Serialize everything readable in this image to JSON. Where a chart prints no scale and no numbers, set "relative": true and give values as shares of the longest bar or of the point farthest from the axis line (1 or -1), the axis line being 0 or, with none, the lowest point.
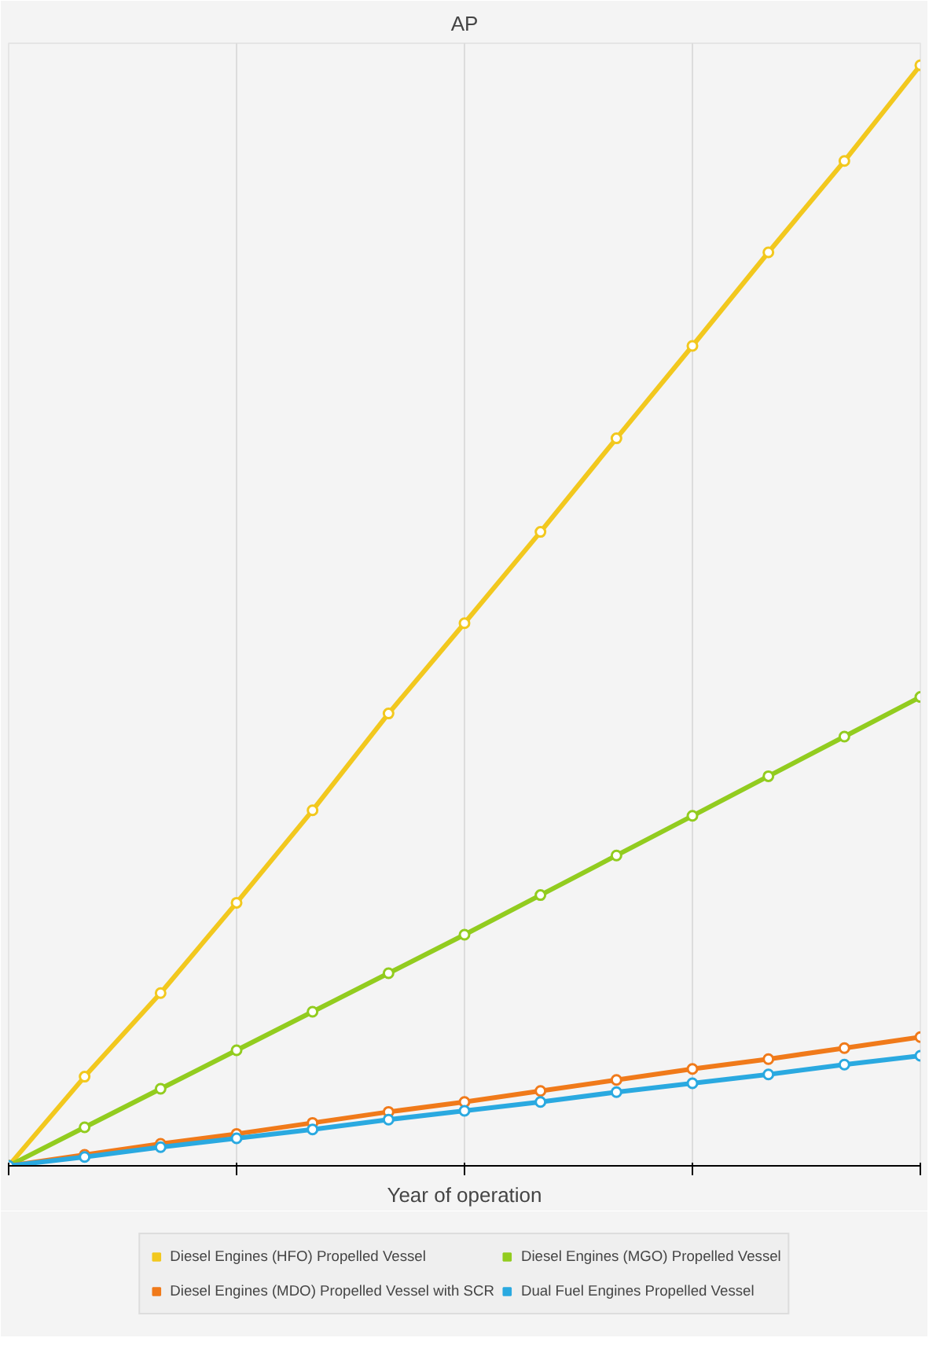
{
  "chart_data": {
    "type": "line",
    "title": "AP",
    "xlabel": "Year of operation",
    "relative": true,
    "categories": [
      null,
      null,
      null,
      null,
      null,
      null,
      null,
      null,
      null,
      null,
      null,
      null,
      null
    ],
    "series": [
      {
        "name": "Diesel Engines (HFO) Propelled Vessel",
        "color": "#f2c81e",
        "values": [
          0,
          0.081,
          0.157,
          0.239,
          0.323,
          0.411,
          0.493,
          0.576,
          0.661,
          0.745,
          0.83,
          0.913,
          1
        ]
      },
      {
        "name": "Diesel Engines (MGO) Propelled Vessel",
        "color": "#92cc1f",
        "values": [
          0,
          0.035,
          0.07,
          0.105,
          0.14,
          0.175,
          0.21,
          0.246,
          0.282,
          0.318,
          0.354,
          0.39,
          0.426
        ]
      },
      {
        "name": "Diesel Engines (MDO) Propelled Vessel with SCR",
        "color": "#f07a1a",
        "values": [
          0,
          0.01,
          0.02,
          0.029,
          0.039,
          0.049,
          0.058,
          0.068,
          0.078,
          0.088,
          0.097,
          0.107,
          0.117
        ]
      },
      {
        "name": "Dual Fuel Engines Propelled Vessel",
        "color": "#2aa9e0",
        "values": [
          0,
          0.008,
          0.017,
          0.025,
          0.033,
          0.042,
          0.05,
          0.058,
          0.067,
          0.075,
          0.083,
          0.092,
          0.1
        ]
      }
    ],
    "grid": "x",
    "legend": "bottom",
    "marker": "circle",
    "line_style": "solid"
  }
}
